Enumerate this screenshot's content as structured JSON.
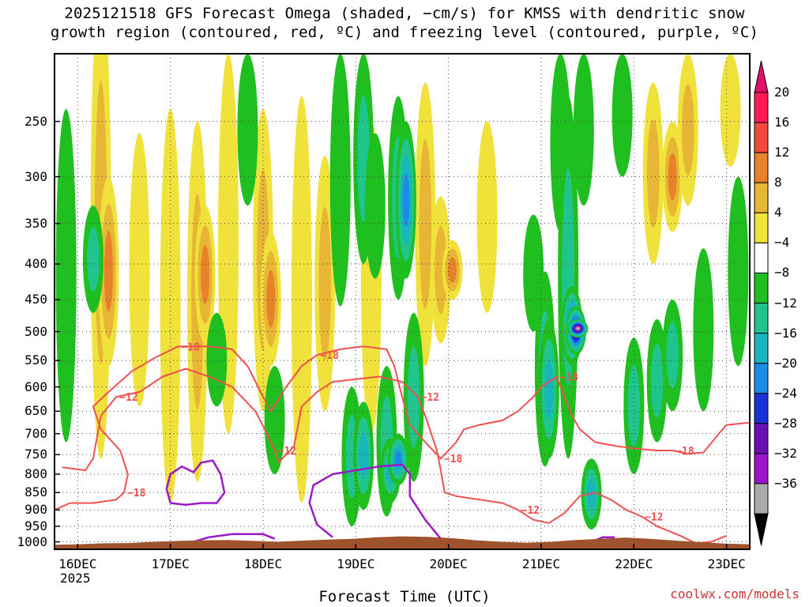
{
  "title": {
    "line1": "2025121518 GFS Forecast Omega (shaded, −cm/s) for KMSS with dendritic snow",
    "line2": "growth region (contoured, red, ºC) and freezing level (contoured, purple, ºC)"
  },
  "credit": "coolwx.com/models",
  "chart_data": {
    "type": "heatmap",
    "title": "2025121518 GFS Forecast Omega (shaded, −cm/s) for KMSS with dendritic snow growth region (contoured, red, ºC) and freezing level (contoured, purple, ºC)",
    "xlabel": "Forecast Time (UTC)",
    "ylabel": "",
    "x_ticks": [
      "16DEC",
      "17DEC",
      "18DEC",
      "19DEC",
      "20DEC",
      "21DEC",
      "22DEC",
      "23DEC"
    ],
    "x_tick_hours": [
      6,
      30,
      54,
      78,
      102,
      126,
      150,
      174
    ],
    "year_label": "2025",
    "xlim_hours": [
      0,
      180
    ],
    "y_ticks": [
      "250",
      "300",
      "350",
      "400",
      "450",
      "500",
      "550",
      "600",
      "650",
      "700",
      "750",
      "800",
      "850",
      "900",
      "950",
      "1000"
    ],
    "y_tick_values": [
      250,
      300,
      350,
      400,
      450,
      500,
      550,
      600,
      650,
      700,
      750,
      800,
      850,
      900,
      950,
      1000
    ],
    "ylim": [
      1025,
      200
    ],
    "grid": true,
    "colorbar": {
      "labels": [
        "20",
        "16",
        "12",
        "8",
        "4",
        "−4",
        "−8",
        "−12",
        "−16",
        "−20",
        "−24",
        "−28",
        "−32",
        "−36"
      ],
      "colors": [
        "#ff1a55",
        "#f14a3a",
        "#e8822a",
        "#e7b635",
        "#f0e23a",
        "#ffffff",
        "#1fbf1f",
        "#1fc58c",
        "#19b5bd",
        "#1a8ce6",
        "#1a33d9",
        "#6a10b3",
        "#9b14c8",
        "#aaaaaa",
        "#000000"
      ],
      "top_arrow_color": "#e0106b",
      "bottom_arrow_color": "#000000"
    },
    "omega_features": [
      {
        "hour": 12,
        "p_top": 160,
        "p_bottom": 760,
        "value": 9
      },
      {
        "hour": 14,
        "p_top": 300,
        "p_bottom": 560,
        "value": 13
      },
      {
        "hour": 22,
        "p_top": 260,
        "p_bottom": 640,
        "value": 6
      },
      {
        "hour": 30,
        "p_top": 240,
        "p_bottom": 880,
        "value": 5
      },
      {
        "hour": 37,
        "p_top": 250,
        "p_bottom": 820,
        "value": 10
      },
      {
        "hour": 39,
        "p_top": 330,
        "p_bottom": 520,
        "value": 14
      },
      {
        "hour": 45,
        "p_top": 200,
        "p_bottom": 700,
        "value": 7
      },
      {
        "hour": 54,
        "p_top": 240,
        "p_bottom": 650,
        "value": 10
      },
      {
        "hour": 56,
        "p_top": 360,
        "p_bottom": 560,
        "value": 15
      },
      {
        "hour": 64,
        "p_top": 230,
        "p_bottom": 880,
        "value": 6
      },
      {
        "hour": 70,
        "p_top": 280,
        "p_bottom": 650,
        "value": 9
      },
      {
        "hour": 82,
        "p_top": 250,
        "p_bottom": 700,
        "value": 7
      },
      {
        "hour": 96,
        "p_top": 220,
        "p_bottom": 560,
        "value": 8
      },
      {
        "hour": 100,
        "p_top": 320,
        "p_bottom": 520,
        "value": 11
      },
      {
        "hour": 103,
        "p_top": 370,
        "p_bottom": 450,
        "value": 15
      },
      {
        "hour": 112,
        "p_top": 250,
        "p_bottom": 470,
        "value": 6
      },
      {
        "hour": 155,
        "p_top": 220,
        "p_bottom": 400,
        "value": 9
      },
      {
        "hour": 160,
        "p_top": 250,
        "p_bottom": 360,
        "value": 13
      },
      {
        "hour": 164,
        "p_top": 200,
        "p_bottom": 330,
        "value": 9
      },
      {
        "hour": 175,
        "p_top": 200,
        "p_bottom": 290,
        "value": 6
      },
      {
        "hour": 3,
        "p_top": 240,
        "p_bottom": 720,
        "value": -5
      },
      {
        "hour": 10,
        "p_top": 330,
        "p_bottom": 470,
        "value": -10
      },
      {
        "hour": 42,
        "p_top": 470,
        "p_bottom": 640,
        "value": -6
      },
      {
        "hour": 50,
        "p_top": 200,
        "p_bottom": 330,
        "value": -6
      },
      {
        "hour": 57,
        "p_top": 560,
        "p_bottom": 800,
        "value": -6
      },
      {
        "hour": 74,
        "p_top": 200,
        "p_bottom": 460,
        "value": -6
      },
      {
        "hour": 77,
        "p_top": 600,
        "p_bottom": 950,
        "value": -8
      },
      {
        "hour": 80,
        "p_top": 200,
        "p_bottom": 400,
        "value": -9
      },
      {
        "hour": 80,
        "p_top": 630,
        "p_bottom": 900,
        "value": -12
      },
      {
        "hour": 83,
        "p_top": 260,
        "p_bottom": 420,
        "value": -5
      },
      {
        "hour": 86,
        "p_top": 560,
        "p_bottom": 920,
        "value": -10
      },
      {
        "hour": 87,
        "p_top": 710,
        "p_bottom": 880,
        "value": -15
      },
      {
        "hour": 89,
        "p_top": 230,
        "p_bottom": 450,
        "value": -10
      },
      {
        "hour": 89,
        "p_top": 700,
        "p_bottom": 830,
        "value": -19
      },
      {
        "hour": 91,
        "p_top": 250,
        "p_bottom": 420,
        "value": -16
      },
      {
        "hour": 93,
        "p_top": 470,
        "p_bottom": 820,
        "value": -9
      },
      {
        "hour": 124,
        "p_top": 340,
        "p_bottom": 500,
        "value": -6
      },
      {
        "hour": 127,
        "p_top": 410,
        "p_bottom": 780,
        "value": -11
      },
      {
        "hour": 128,
        "p_top": 480,
        "p_bottom": 760,
        "value": -15
      },
      {
        "hour": 131,
        "p_top": 200,
        "p_bottom": 360,
        "value": -6
      },
      {
        "hour": 133,
        "p_top": 230,
        "p_bottom": 760,
        "value": -8
      },
      {
        "hour": 134,
        "p_top": 430,
        "p_bottom": 560,
        "value": -22
      },
      {
        "hour": 135,
        "p_top": 460,
        "p_bottom": 540,
        "value": -29
      },
      {
        "hour": 135.5,
        "p_top": 480,
        "p_bottom": 510,
        "value": -34
      },
      {
        "hour": 137,
        "p_top": 200,
        "p_bottom": 330,
        "value": -6
      },
      {
        "hour": 139,
        "p_top": 760,
        "p_bottom": 960,
        "value": -14
      },
      {
        "hour": 147,
        "p_top": 200,
        "p_bottom": 300,
        "value": -6
      },
      {
        "hour": 150,
        "p_top": 510,
        "p_bottom": 800,
        "value": -10
      },
      {
        "hour": 156,
        "p_top": 480,
        "p_bottom": 720,
        "value": -11
      },
      {
        "hour": 160,
        "p_top": 450,
        "p_bottom": 650,
        "value": -8
      },
      {
        "hour": 168,
        "p_top": 380,
        "p_bottom": 650,
        "value": -6
      },
      {
        "hour": 177,
        "p_top": 300,
        "p_bottom": 560,
        "value": -6
      }
    ],
    "contours": [
      {
        "name": "−12 ºC",
        "color": "#f05050",
        "labels": [
          "−12",
          "−12",
          "−12",
          "−12",
          "−12"
        ],
        "points": [
          [
            2,
            782
          ],
          [
            8,
            790
          ],
          [
            10,
            760
          ],
          [
            12,
            660
          ],
          [
            16,
            620
          ],
          [
            22,
            610
          ],
          [
            28,
            580
          ],
          [
            34,
            565
          ],
          [
            40,
            580
          ],
          [
            46,
            600
          ],
          [
            52,
            650
          ],
          [
            55,
            700
          ],
          [
            57,
            740
          ],
          [
            58,
            770
          ],
          [
            62,
            730
          ],
          [
            64,
            640
          ],
          [
            68,
            610
          ],
          [
            72,
            590
          ],
          [
            78,
            585
          ],
          [
            84,
            580
          ],
          [
            90,
            590
          ],
          [
            94,
            620
          ],
          [
            96,
            660
          ],
          [
            99,
            740
          ],
          [
            100,
            790
          ],
          [
            101,
            850
          ],
          [
            104,
            860
          ],
          [
            110,
            870
          ],
          [
            116,
            880
          ],
          [
            120,
            900
          ],
          [
            124,
            930
          ],
          [
            128,
            940
          ],
          [
            132,
            910
          ],
          [
            136,
            860
          ],
          [
            140,
            850
          ],
          [
            144,
            870
          ],
          [
            148,
            900
          ],
          [
            152,
            920
          ],
          [
            156,
            950
          ],
          [
            162,
            980
          ],
          [
            166,
            1005
          ],
          [
            170,
            1000
          ],
          [
            174,
            980
          ]
        ]
      },
      {
        "name": "−18 ºC",
        "color": "#f05050",
        "labels": [
          "−18",
          "−18",
          "−18",
          "−18",
          "−18",
          "−18"
        ],
        "points": [
          [
            0,
            900
          ],
          [
            4,
            880
          ],
          [
            10,
            880
          ],
          [
            16,
            870
          ],
          [
            18,
            850
          ],
          [
            19,
            800
          ],
          [
            17,
            740
          ],
          [
            12,
            690
          ],
          [
            10,
            640
          ],
          [
            14,
            610
          ],
          [
            20,
            570
          ],
          [
            26,
            545
          ],
          [
            32,
            525
          ],
          [
            40,
            525
          ],
          [
            46,
            530
          ],
          [
            50,
            560
          ],
          [
            54,
            620
          ],
          [
            56,
            650
          ],
          [
            60,
            600
          ],
          [
            64,
            560
          ],
          [
            68,
            540
          ],
          [
            74,
            530
          ],
          [
            80,
            525
          ],
          [
            86,
            530
          ],
          [
            88,
            560
          ],
          [
            90,
            620
          ],
          [
            92,
            680
          ],
          [
            96,
            720
          ],
          [
            100,
            760
          ],
          [
            104,
            720
          ],
          [
            106,
            690
          ],
          [
            110,
            680
          ],
          [
            116,
            670
          ],
          [
            120,
            650
          ],
          [
            124,
            620
          ],
          [
            126,
            600
          ],
          [
            130,
            580
          ],
          [
            132,
            620
          ],
          [
            134,
            660
          ],
          [
            136,
            690
          ],
          [
            140,
            720
          ],
          [
            146,
            730
          ],
          [
            150,
            735
          ],
          [
            156,
            740
          ],
          [
            160,
            740
          ],
          [
            164,
            748
          ],
          [
            168,
            745
          ],
          [
            172,
            700
          ],
          [
            174,
            680
          ],
          [
            180,
            675
          ]
        ]
      }
    ],
    "freezing_level": [
      {
        "name": "0 ºC",
        "color": "#9b19c8",
        "points": [
          [
            30,
            880
          ],
          [
            29,
            840
          ],
          [
            30,
            800
          ],
          [
            33,
            780
          ],
          [
            36,
            795
          ],
          [
            38,
            770
          ],
          [
            41,
            765
          ],
          [
            43,
            800
          ],
          [
            44,
            850
          ],
          [
            42,
            880
          ],
          [
            38,
            880
          ],
          [
            34,
            885
          ],
          [
            30,
            880
          ]
        ]
      },
      {
        "name": "0 ºC",
        "color": "#9b19c8",
        "points": [
          [
            36,
            1000
          ],
          [
            40,
            985
          ],
          [
            46,
            975
          ],
          [
            54,
            975
          ],
          [
            57,
            990
          ]
        ]
      },
      {
        "name": "0 ºC",
        "color": "#9b19c8",
        "points": [
          [
            72,
            985
          ],
          [
            68,
            945
          ],
          [
            66,
            880
          ],
          [
            67,
            830
          ],
          [
            72,
            800
          ],
          [
            78,
            790
          ],
          [
            84,
            780
          ],
          [
            90,
            775
          ],
          [
            92,
            800
          ],
          [
            92,
            860
          ],
          [
            96,
            930
          ],
          [
            100,
            990
          ]
        ]
      },
      {
        "name": "0 ºC",
        "color": "#9b19c8",
        "points": [
          [
            140,
            995
          ],
          [
            142,
            985
          ],
          [
            145,
            985
          ]
        ]
      }
    ],
    "terrain_color": "#a0522d",
    "terrain_top_hpa": [
      1010,
      1008,
      1005,
      1004,
      1000,
      997,
      995,
      994,
      997,
      1000,
      996,
      993,
      990,
      985,
      982,
      984,
      988,
      995,
      1000,
      1003,
      1000,
      994,
      990,
      986,
      990,
      996,
      1001,
      1006,
      1008
    ]
  }
}
